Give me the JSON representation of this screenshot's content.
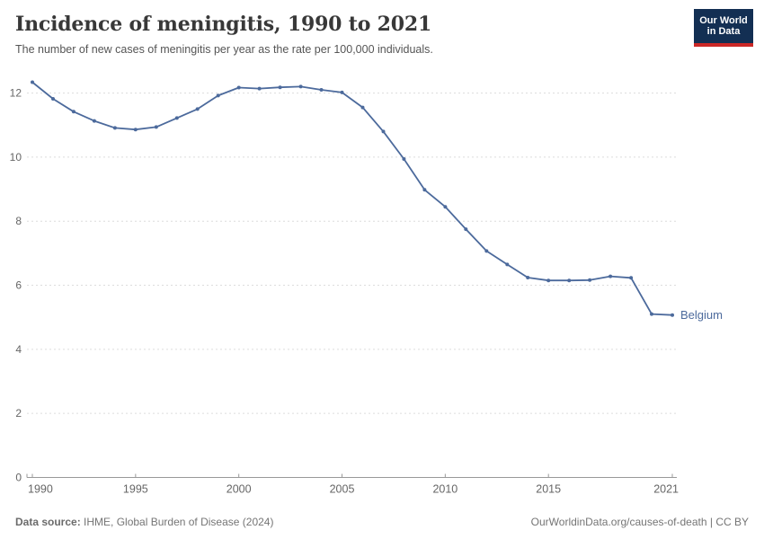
{
  "header": {
    "title": "Incidence of meningitis, 1990 to 2021",
    "subtitle": "The number of new cases of meningitis per year as the rate per 100,000 individuals."
  },
  "logo": {
    "line1": "Our World",
    "line2": "in Data",
    "bg_color": "#132F53",
    "bar_color": "#CB2726"
  },
  "chart_data": {
    "type": "line",
    "title": "Incidence of meningitis, 1990 to 2021",
    "xlabel": "",
    "ylabel": "",
    "xlim": [
      1990,
      2021
    ],
    "ylim": [
      0,
      12.4
    ],
    "xticks": [
      1990,
      1995,
      2000,
      2005,
      2010,
      2015,
      2021
    ],
    "yticks": [
      0,
      2,
      4,
      6,
      8,
      10,
      12
    ],
    "grid": "horizontal-dashed",
    "legend_position": "end-of-line-label",
    "entity_label": "Belgium",
    "colors": {
      "line": "#4C6A9C",
      "gridline": "#dcdcdc",
      "axis": "#999999",
      "tick_label": "#666666"
    },
    "series": [
      {
        "name": "Belgium",
        "color": "#4C6A9C",
        "x": [
          1990,
          1991,
          1992,
          1993,
          1994,
          1995,
          1996,
          1997,
          1998,
          1999,
          2000,
          2001,
          2002,
          2003,
          2004,
          2005,
          2006,
          2007,
          2008,
          2009,
          2010,
          2011,
          2012,
          2013,
          2014,
          2015,
          2016,
          2017,
          2018,
          2019,
          2020,
          2021
        ],
        "values": [
          12.34,
          11.82,
          11.42,
          11.13,
          10.91,
          10.86,
          10.94,
          11.22,
          11.5,
          11.92,
          12.17,
          12.14,
          12.18,
          12.2,
          12.1,
          12.02,
          11.55,
          10.8,
          9.94,
          8.98,
          8.45,
          7.75,
          7.07,
          6.65,
          6.24,
          6.15,
          6.15,
          6.16,
          6.28,
          6.23,
          5.1,
          5.07
        ]
      }
    ]
  },
  "footer": {
    "datasource_label": "Data source:",
    "datasource_value": " IHME, Global Burden of Disease (2024)",
    "link": "OurWorldinData.org/causes-of-death | CC BY"
  }
}
